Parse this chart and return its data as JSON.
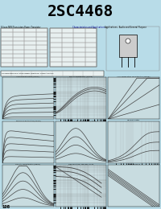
{
  "title": "2SC4468",
  "header_color": "#00EEFF",
  "page_bg": "#B8DCE8",
  "title_fontsize": 14,
  "page_number": "108",
  "graph_bg": "#C8DCE0",
  "graph_grid_color": "#888888",
  "curve_color": "#444444",
  "graph_titles": [
    "Ic-Vce Characteristics (Typical)",
    "hFE-Ic Characteristics (Typical)",
    "Ic-Vce Temperature Characteristics (Typical)",
    "hFE-Vce Characteristics (Typical)",
    "hFE-Temperature Characteristics (Typical)",
    "fT-Characteristics",
    "VCE(sat) Characteristics (Typical)",
    "Safe Operating Area Power Pulse",
    "Free-For Biasing"
  ],
  "table_bg": "#E8F0F0",
  "table_line": "#999999"
}
